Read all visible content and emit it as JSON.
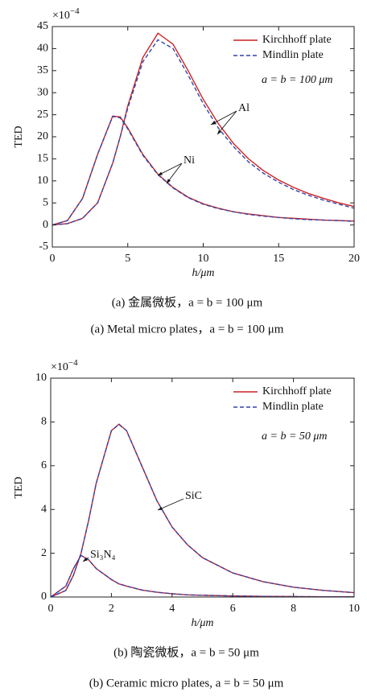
{
  "chart_data": [
    {
      "type": "line",
      "xlabel": "h/μm",
      "ylabel": "TED",
      "y_multiplier": "×10",
      "y_multiplier_exp": "−4",
      "annotation": "a = b = 100 μm",
      "caption_cn": "(a) 金属微板，a = b = 100 μm",
      "caption_en": "(a) Metal micro plates，a = b = 100 μm",
      "xlim": [
        0,
        20
      ],
      "xticks": [
        0,
        5,
        10,
        15,
        20
      ],
      "ylim": [
        -5,
        45
      ],
      "yticks": [
        -5,
        0,
        5,
        10,
        15,
        20,
        25,
        30,
        35,
        40,
        45
      ],
      "legend_position": "upper right",
      "series": [
        {
          "name": "Kirchhoff plate",
          "color": "#cc2222",
          "dashed": false
        },
        {
          "name": "Mindlin plate",
          "color": "#3344aa",
          "dashed": true
        }
      ],
      "x": [
        0,
        1,
        2,
        3,
        4,
        4.5,
        5,
        6,
        7,
        8,
        9,
        10,
        11,
        12,
        13,
        14,
        15,
        16,
        17,
        18,
        19,
        20
      ],
      "materials": [
        {
          "label": "Al",
          "values": [
            [
              0,
              0.3,
              1.5,
              5,
              14,
              20,
              27,
              38,
              43.5,
              41,
              35,
              28.5,
              23,
              18.5,
              15,
              12.3,
              10.2,
              8.5,
              7.1,
              6,
              5,
              4.2
            ],
            [
              0,
              0.3,
              1.5,
              5,
              14,
              20,
              26.5,
              37,
              42,
              40,
              34,
              27.5,
              22,
              17.8,
              14.3,
              11.7,
              9.7,
              8,
              6.7,
              5.6,
              4.7,
              3.8
            ]
          ]
        },
        {
          "label": "Ni",
          "values": [
            [
              0,
              1,
              6,
              16,
              24.7,
              24.5,
              22,
              16,
              11.5,
              8.5,
              6.3,
              4.8,
              3.8,
              3,
              2.5,
              2.1,
              1.7,
              1.5,
              1.3,
              1.1,
              1,
              0.9
            ],
            [
              0,
              1,
              6,
              16,
              24.6,
              24.3,
              21.8,
              15.8,
              11.4,
              8.4,
              6.2,
              4.7,
              3.7,
              3,
              2.4,
              2,
              1.7,
              1.4,
              1.2,
              1.1,
              1,
              0.8
            ]
          ]
        }
      ]
    },
    {
      "type": "line",
      "xlabel": "h/μm",
      "ylabel": "TED",
      "y_multiplier": "×10",
      "y_multiplier_exp": "−4",
      "annotation": "a = b = 50 μm",
      "caption_cn": "(b) 陶瓷微板，a = b = 50 μm",
      "caption_en": "(b) Ceramic micro plates, a = b = 50 μm",
      "xlim": [
        0,
        10
      ],
      "xticks": [
        0,
        2,
        4,
        6,
        8,
        10
      ],
      "ylim": [
        0,
        10
      ],
      "yticks": [
        0,
        2,
        4,
        6,
        8,
        10
      ],
      "legend_position": "upper right",
      "series": [
        {
          "name": "Kirchhoff plate",
          "color": "#cc2222",
          "dashed": false
        },
        {
          "name": "Mindlin plate",
          "color": "#3344aa",
          "dashed": true
        }
      ],
      "x": [
        0,
        0.5,
        0.75,
        1,
        1.25,
        1.5,
        2,
        2.25,
        2.5,
        3,
        3.5,
        4,
        4.5,
        5,
        6,
        7,
        8,
        9,
        10
      ],
      "materials": [
        {
          "label": "SiC",
          "values": [
            [
              0,
              0.3,
              1,
              2,
              3.5,
              5.2,
              7.6,
              7.9,
              7.6,
              6,
              4.4,
              3.2,
              2.4,
              1.8,
              1.1,
              0.7,
              0.45,
              0.3,
              0.2
            ],
            [
              0,
              0.3,
              1,
              2,
              3.5,
              5.2,
              7.6,
              7.88,
              7.6,
              6,
              4.4,
              3.2,
              2.4,
              1.8,
              1.1,
              0.7,
              0.45,
              0.3,
              0.2
            ]
          ]
        },
        {
          "label": "Si₃N₄",
          "values": [
            [
              0,
              0.5,
              1.3,
              1.9,
              1.7,
              1.3,
              0.8,
              0.6,
              0.5,
              0.32,
              0.22,
              0.15,
              0.1,
              0.08,
              0.05,
              0.03,
              0.02,
              0.01,
              0.01
            ],
            [
              0,
              0.5,
              1.3,
              1.9,
              1.7,
              1.3,
              0.8,
              0.6,
              0.5,
              0.32,
              0.22,
              0.15,
              0.1,
              0.08,
              0.05,
              0.03,
              0.02,
              0.01,
              0.01
            ]
          ]
        }
      ]
    }
  ]
}
